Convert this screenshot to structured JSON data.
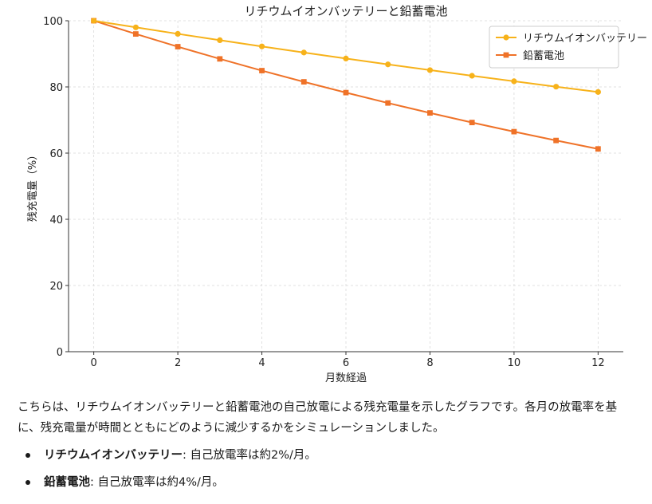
{
  "chart_data": {
    "type": "line",
    "title": "リチウムイオンバッテリーと鉛蓄電池",
    "xlabel": "月数経過",
    "ylabel": "残充電量（%）",
    "xlim": [
      -0.6,
      12.6
    ],
    "ylim": [
      0,
      100
    ],
    "xticks": [
      0,
      2,
      4,
      6,
      8,
      10,
      12
    ],
    "yticks": [
      0,
      20,
      40,
      60,
      80,
      100
    ],
    "grid": true,
    "legend": "top-right",
    "x": [
      0,
      1,
      2,
      3,
      4,
      5,
      6,
      7,
      8,
      9,
      10,
      11,
      12
    ],
    "series": [
      {
        "name": "リチウムイオンバッテリー",
        "color": "#f7b21a",
        "marker": "circle",
        "values": [
          100,
          98,
          96.04,
          94.12,
          92.24,
          90.39,
          88.58,
          86.81,
          85.08,
          83.37,
          81.71,
          80.07,
          78.47
        ]
      },
      {
        "name": "鉛蓄電池",
        "color": "#ef7228",
        "marker": "square",
        "values": [
          100,
          96,
          92.16,
          88.47,
          84.93,
          81.54,
          78.28,
          75.14,
          72.14,
          69.25,
          66.48,
          63.82,
          61.27
        ]
      }
    ]
  },
  "message": {
    "paragraph": "こちらは、リチウムイオンバッテリーと鉛蓄電池の自己放電による残充電量を示したグラフです。各月の放電率を基に、残充電量が時間とともにどのように減少するかをシミュレーションしました。",
    "bullets": [
      {
        "term": "リチウムイオンバッテリー",
        "text": ": 自己放電率は約2%/月。"
      },
      {
        "term": "鉛蓄電池",
        "text": ": 自己放電率は約4%/月。"
      }
    ]
  }
}
